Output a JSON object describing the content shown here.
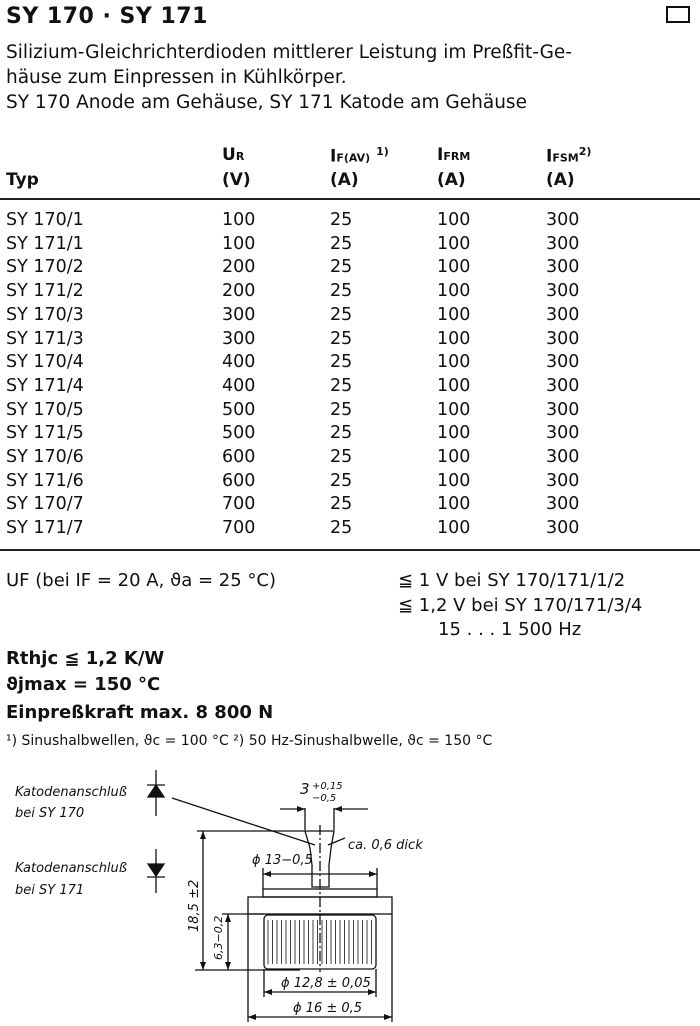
{
  "header": {
    "title": "SY 170 · SY 171",
    "description": [
      "Silizium-Gleichrichterdioden mittlerer Leistung im Preßfit-Ge-",
      "häuse zum Einpressen in Kühlkörper.",
      "SY 170 Anode am Gehäuse, SY 171 Katode am Gehäuse"
    ]
  },
  "table": {
    "columns": [
      {
        "name": "Typ",
        "unit": ""
      },
      {
        "name": "U",
        "sub": "R",
        "sup": "",
        "unit": "(V)"
      },
      {
        "name": "I",
        "sub": "F(AV)",
        "sup": "1)",
        "unit": "(A)"
      },
      {
        "name": "I",
        "sub": "FRM",
        "sup": "",
        "unit": "(A)"
      },
      {
        "name": "I",
        "sub": "FSM",
        "sup": "2)",
        "unit": "(A)"
      }
    ],
    "rows": [
      [
        "SY 170/1",
        "100",
        "25",
        "100",
        "300"
      ],
      [
        "SY 171/1",
        "100",
        "25",
        "100",
        "300"
      ],
      [
        "SY 170/2",
        "200",
        "25",
        "100",
        "300"
      ],
      [
        "SY 171/2",
        "200",
        "25",
        "100",
        "300"
      ],
      [
        "SY 170/3",
        "300",
        "25",
        "100",
        "300"
      ],
      [
        "SY 171/3",
        "300",
        "25",
        "100",
        "300"
      ],
      [
        "SY 170/4",
        "400",
        "25",
        "100",
        "300"
      ],
      [
        "SY 171/4",
        "400",
        "25",
        "100",
        "300"
      ],
      [
        "SY 170/5",
        "500",
        "25",
        "100",
        "300"
      ],
      [
        "SY 171/5",
        "500",
        "25",
        "100",
        "300"
      ],
      [
        "SY 170/6",
        "600",
        "25",
        "100",
        "300"
      ],
      [
        "SY 171/6",
        "600",
        "25",
        "100",
        "300"
      ],
      [
        "SY 170/7",
        "700",
        "25",
        "100",
        "300"
      ],
      [
        "SY 171/7",
        "700",
        "25",
        "100",
        "300"
      ]
    ]
  },
  "specs": {
    "uf_label": "UF  (bei IF = 20 A, ϑa = 25 °C)",
    "uf_values": [
      "≦ 1 V bei SY 170/171/1/2",
      "≦ 1,2 V bei SY 170/171/3/4",
      "15 . . . 1 500 Hz"
    ],
    "rthjc": "Rthjc ≦ 1,2 K/W",
    "tjmax": "ϑjmax  = 150 °C",
    "einpresskraft": "Einpreßkraft max. 8 800 N",
    "footnotes": "¹) Sinushalbwellen, ϑc = 100 °C   ²) 50 Hz-Sinushalbwelle, ϑc = 150 °C"
  },
  "drawing": {
    "label_sy170": [
      "Katodenanschluß",
      "bei SY 170"
    ],
    "label_sy171": [
      "Katodenanschluß",
      "bei SY 171"
    ],
    "dim_width": "3",
    "dim_width_tol_upper": "+0,15",
    "dim_width_tol_lower": "−0,5",
    "thickness": "ca. 0,6 dick",
    "dim_d13": "ϕ 13−0,5",
    "dim_height": "18,5 ±2",
    "dim_body": "6,3−0,2",
    "dim_d128": "ϕ 12,8 ± 0,05",
    "dim_d16": "ϕ 16 ± 0,5"
  }
}
